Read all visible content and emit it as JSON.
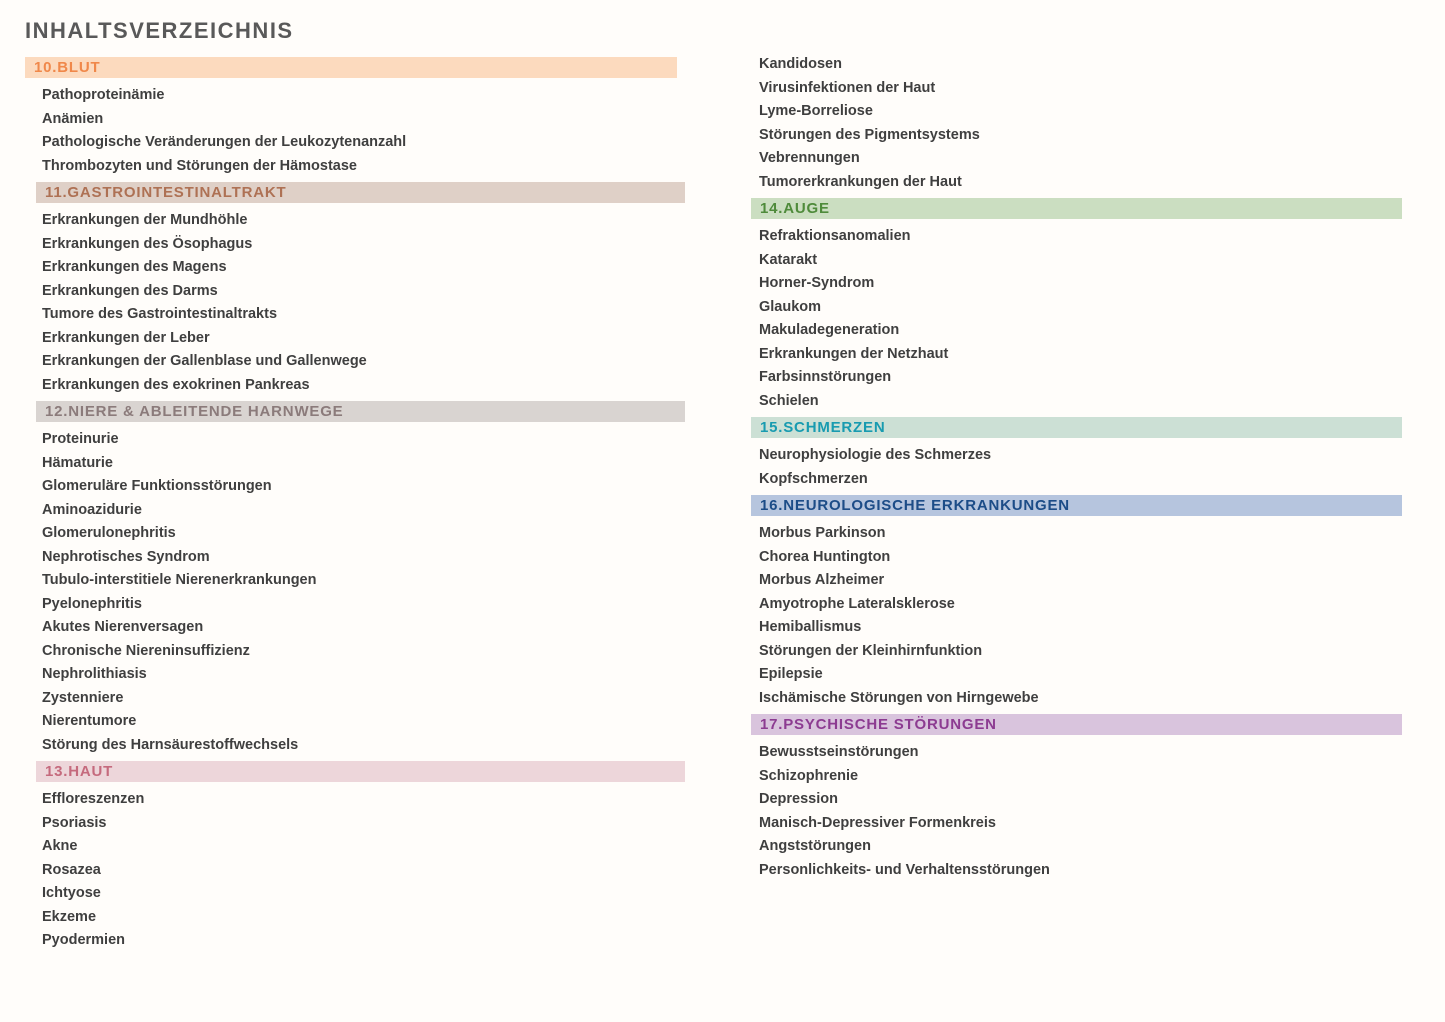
{
  "page_title": "INHALTSVERZEICHNIS",
  "text_colors": {
    "title": "#595959",
    "item": "#3F3F3F"
  },
  "columns": [
    {
      "sections": [
        {
          "header": {
            "label": "10.BLUT",
            "bg": "#FCDABE",
            "fg": "#F0884A"
          },
          "items": [
            "Pathoproteinämie",
            "Anämien",
            "Pathologische Veränderungen der Leukozytenanzahl",
            "Thrombozyten und Störungen der Hämostase"
          ]
        },
        {
          "header": {
            "label": "11.GASTROINTESTINALTRAKT",
            "bg": "#DFD0C7",
            "fg": "#AE7154"
          },
          "items": [
            "Erkrankungen der Mundhöhle",
            "Erkrankungen des Ösophagus",
            "Erkrankungen des Magens",
            "Erkrankungen des Darms",
            "Tumore des Gastrointestinaltrakts",
            "Erkrankungen der Leber",
            "Erkrankungen der Gallenblase und Gallenwege",
            "Erkrankungen des exokrinen Pankreas"
          ]
        },
        {
          "header": {
            "label": "12.NIERE & ABLEITENDE HARNWEGE",
            "bg": "#D9D4D1",
            "fg": "#8B7B7B"
          },
          "items": [
            "Proteinurie",
            "Hämaturie",
            "Glomeruläre Funktionsstörungen",
            "Aminoazidurie",
            "Glomerulonephritis",
            "Nephrotisches Syndrom",
            "Tubulo-interstitiele Nierenerkrankungen",
            "Pyelonephritis",
            "Akutes Nierenversagen",
            "Chronische Niereninsuffizienz",
            "Nephrolithiasis",
            "Zystenniere",
            "Nierentumore",
            "Störung des Harnsäurestoffwechsels"
          ]
        },
        {
          "header": {
            "label": "13.HAUT",
            "bg": "#EDD6DA",
            "fg": "#C56A7D"
          },
          "items": [
            "Effloreszenzen",
            "Psoriasis",
            "Akne",
            "Rosazea",
            "Ichtyose",
            "Ekzeme",
            "Pyodermien"
          ]
        }
      ]
    },
    {
      "sections": [
        {
          "header": null,
          "items": [
            "Kandidosen",
            "Virusinfektionen der Haut",
            "Lyme-Borreliose",
            "Störungen des Pigmentsystems",
            "Vebrennungen",
            "Tumorerkrankungen der Haut"
          ]
        },
        {
          "header": {
            "label": "14.AUGE",
            "bg": "#CBDEC1",
            "fg": "#4F8B3B"
          },
          "items": [
            "Refraktionsanomalien",
            "Katarakt",
            "Horner-Syndrom",
            "Glaukom",
            "Makuladegeneration",
            "Erkrankungen der Netzhaut",
            "Farbsinnstörungen",
            "Schielen"
          ]
        },
        {
          "header": {
            "label": "15.SCHMERZEN",
            "bg": "#CCE0D5",
            "fg": "#189BB0"
          },
          "items": [
            "Neurophysiologie des Schmerzes",
            "Kopfschmerzen"
          ]
        },
        {
          "header": {
            "label": "16.NEUROLOGISCHE ERKRANKUNGEN",
            "bg": "#B6C5DE",
            "fg": "#1C4C87"
          },
          "items": [
            "Morbus Parkinson",
            "Chorea Huntington",
            "Morbus Alzheimer",
            "Amyotrophe Lateralsklerose",
            "Hemiballismus",
            "Störungen der Kleinhirnfunktion",
            "Epilepsie",
            "Ischämische Störungen von Hirngewebe"
          ]
        },
        {
          "header": {
            "label": "17.PSYCHISCHE STÖRUNGEN",
            "bg": "#D9C4DD",
            "fg": "#8C3B91"
          },
          "items": [
            "Bewusstseinstörungen",
            "Schizophrenie",
            "Depression",
            "Manisch-Depressiver Formenkreis",
            "Angststörungen",
            "Personlichkeits- und Verhaltensstörungen"
          ]
        }
      ]
    }
  ]
}
